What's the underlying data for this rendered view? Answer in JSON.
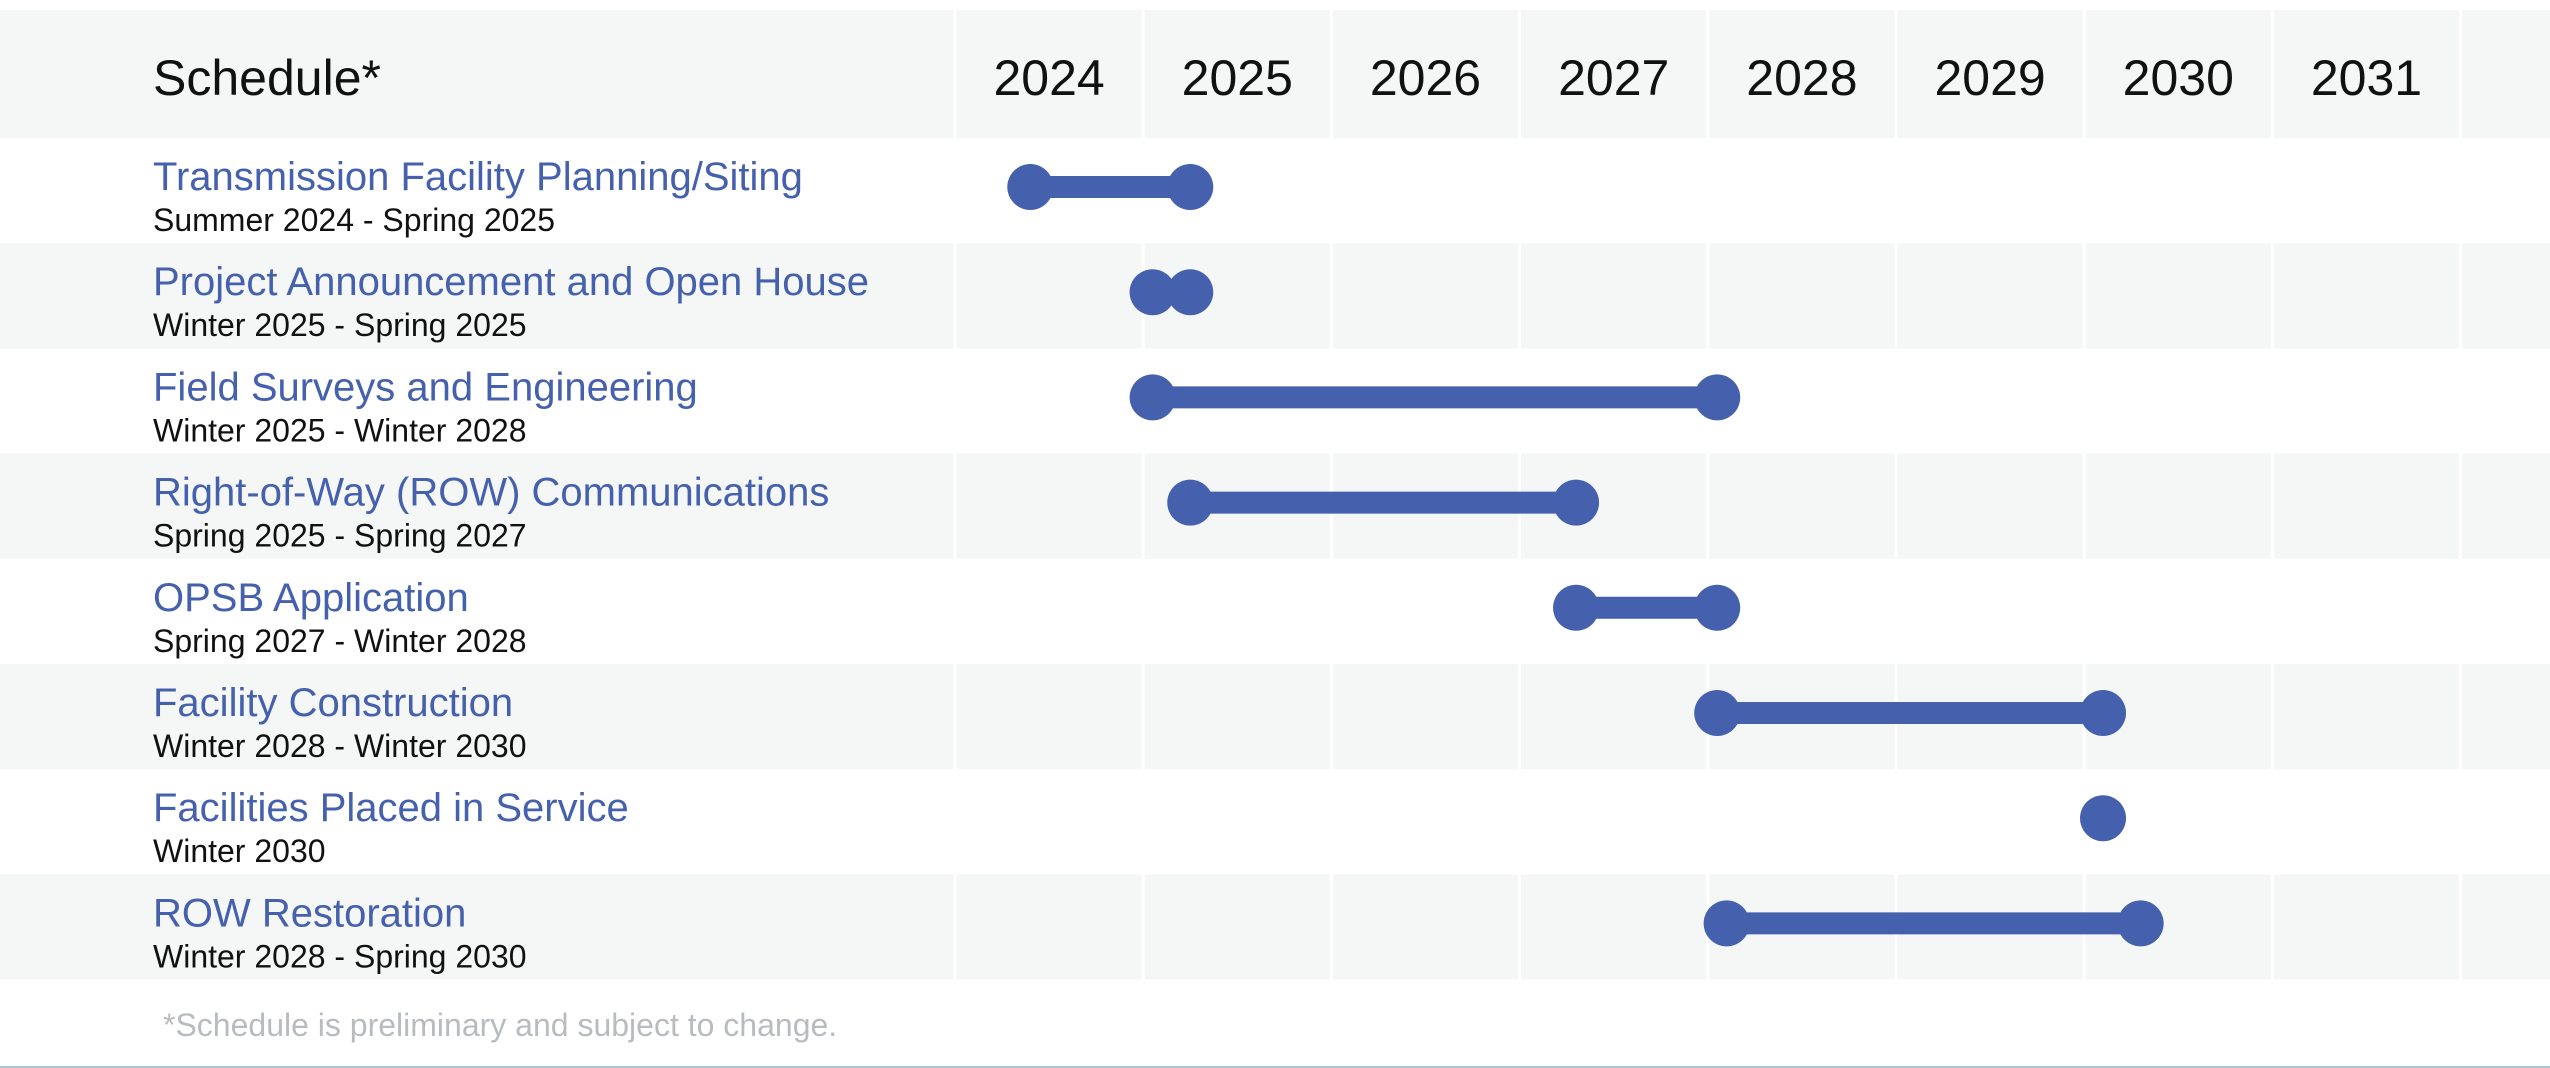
{
  "header": {
    "title": "Schedule*"
  },
  "footnote": "*Schedule is preliminary and subject to change.",
  "colors": {
    "accent": "#4561ae",
    "band": "#f5f6f6",
    "grid": "#ffffff",
    "text": "#111111",
    "footnote": "#b9bcbf"
  },
  "chart_data": {
    "type": "gantt",
    "title": "Schedule*",
    "x_axis": {
      "ticks": [
        "2024",
        "2025",
        "2026",
        "2027",
        "2028",
        "2029",
        "2030",
        "2031"
      ],
      "range": [
        2024,
        2032
      ]
    },
    "tasks": [
      {
        "name": "Transmission Facility Planning/Siting",
        "period": "Summer 2024 - Spring 2025",
        "start": 2024.4,
        "end": 2025.25
      },
      {
        "name": "Project Announcement and Open House",
        "period": "Winter 2025 - Spring 2025",
        "start": 2025.05,
        "end": 2025.25
      },
      {
        "name": "Field Surveys and Engineering",
        "period": "Winter 2025 - Winter 2028",
        "start": 2025.05,
        "end": 2028.05
      },
      {
        "name": "Right-of-Way (ROW) Communications",
        "period": "Spring 2025 - Spring 2027",
        "start": 2025.25,
        "end": 2027.3
      },
      {
        "name": "OPSB Application",
        "period": "Spring 2027 - Winter 2028",
        "start": 2027.3,
        "end": 2028.05
      },
      {
        "name": "Facility Construction",
        "period": "Winter 2028 - Winter 2030",
        "start": 2028.05,
        "end": 2030.1
      },
      {
        "name": "Facilities Placed in Service",
        "period": "Winter 2030",
        "start": 2030.1,
        "end": 2030.1
      },
      {
        "name": "ROW Restoration",
        "period": "Winter 2028 - Spring 2030",
        "start": 2028.1,
        "end": 2030.3
      }
    ]
  }
}
